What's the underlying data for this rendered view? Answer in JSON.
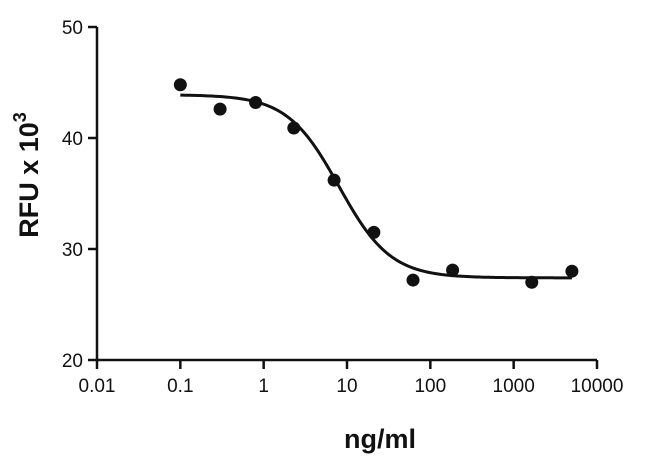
{
  "chart_data": {
    "type": "scatter",
    "title": "",
    "xlabel": "ng/ml",
    "ylabel": "RFU x 10",
    "ylabel_superscript": "3",
    "x_scale": "log",
    "xlim": [
      0.01,
      10000
    ],
    "ylim": [
      20,
      50
    ],
    "x_ticks": [
      0.01,
      0.1,
      1,
      10,
      100,
      1000,
      10000
    ],
    "x_tick_labels": [
      "0.01",
      "0.1",
      "1",
      "10",
      "100",
      "1000",
      "10000"
    ],
    "y_ticks": [
      20,
      30,
      40,
      50
    ],
    "y_tick_labels": [
      "20",
      "30",
      "40",
      "50"
    ],
    "grid": false,
    "legend": "none",
    "colors": {
      "marks": "#111111",
      "axis": "#111111"
    },
    "points": {
      "x": [
        0.1,
        0.3,
        0.8,
        2.3,
        7,
        21,
        62,
        185,
        1650,
        5000
      ],
      "y": [
        44.8,
        42.6,
        43.2,
        40.9,
        36.2,
        31.5,
        27.2,
        28.1,
        27.0,
        28.0
      ]
    },
    "fit_curve": {
      "type": "sigmoidal-dose-response",
      "top": 43.9,
      "bottom": 27.4,
      "ec50": 8,
      "hill_slope": 1.4,
      "x_range": [
        0.1,
        5000
      ]
    }
  }
}
